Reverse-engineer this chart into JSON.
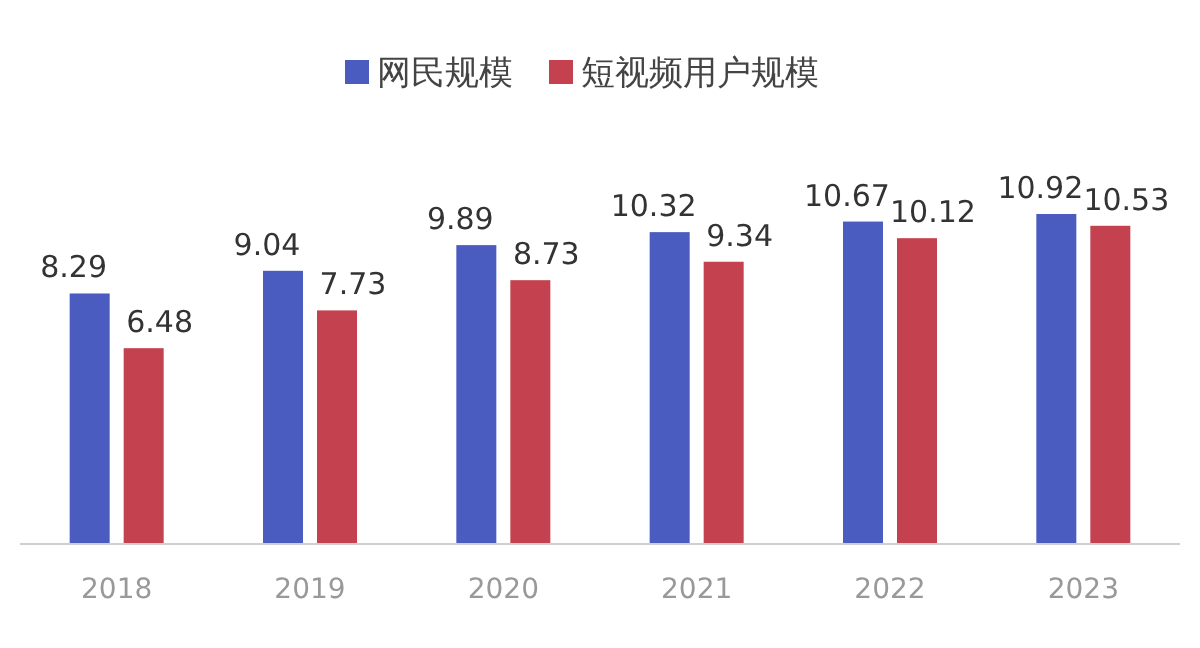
{
  "chart_data": {
    "type": "bar",
    "categories": [
      "2018",
      "2019",
      "2020",
      "2021",
      "2022",
      "2023"
    ],
    "series": [
      {
        "name": "网民规模",
        "color": "#4a5cbf",
        "values": [
          8.29,
          9.04,
          9.89,
          10.32,
          10.67,
          10.92
        ]
      },
      {
        "name": "短视频用户规模",
        "color": "#c4424f",
        "values": [
          6.48,
          7.73,
          8.73,
          9.34,
          10.12,
          10.53
        ]
      }
    ],
    "data_labels": true,
    "legend": "top",
    "grid": false
  }
}
